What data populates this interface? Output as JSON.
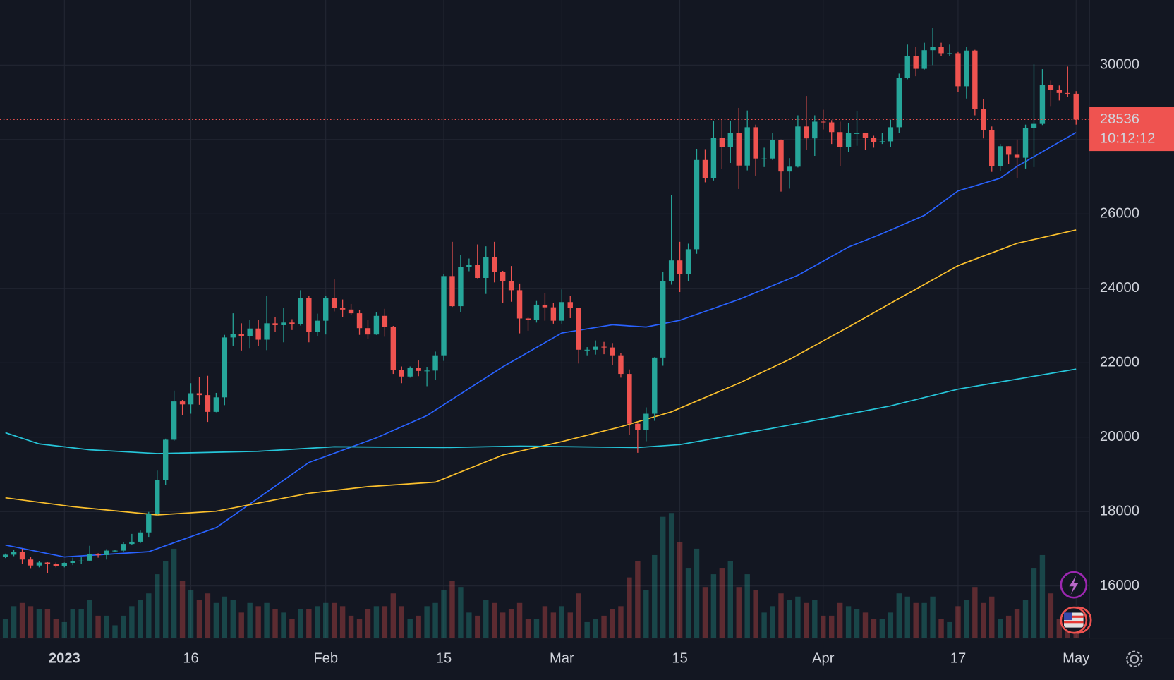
{
  "chart_data": {
    "type": "candlestick",
    "x": [
      "2022-12-25",
      "2022-12-26",
      "2022-12-27",
      "2022-12-28",
      "2022-12-29",
      "2022-12-30",
      "2022-12-31",
      "2023-01-01",
      "2023-01-02",
      "2023-01-03",
      "2023-01-04",
      "2023-01-05",
      "2023-01-06",
      "2023-01-07",
      "2023-01-08",
      "2023-01-09",
      "2023-01-10",
      "2023-01-11",
      "2023-01-12",
      "2023-01-13",
      "2023-01-14",
      "2023-01-15",
      "2023-01-16",
      "2023-01-17",
      "2023-01-18",
      "2023-01-19",
      "2023-01-20",
      "2023-01-21",
      "2023-01-22",
      "2023-01-23",
      "2023-01-24",
      "2023-01-25",
      "2023-01-26",
      "2023-01-27",
      "2023-01-28",
      "2023-01-29",
      "2023-01-30",
      "2023-01-31",
      "2023-02-01",
      "2023-02-02",
      "2023-02-03",
      "2023-02-04",
      "2023-02-05",
      "2023-02-06",
      "2023-02-07",
      "2023-02-08",
      "2023-02-09",
      "2023-02-10",
      "2023-02-11",
      "2023-02-12",
      "2023-02-13",
      "2023-02-14",
      "2023-02-15",
      "2023-02-16",
      "2023-02-17",
      "2023-02-18",
      "2023-02-19",
      "2023-02-20",
      "2023-02-21",
      "2023-02-22",
      "2023-02-23",
      "2023-02-24",
      "2023-02-25",
      "2023-02-26",
      "2023-02-27",
      "2023-02-28",
      "2023-03-01",
      "2023-03-02",
      "2023-03-03",
      "2023-03-04",
      "2023-03-05",
      "2023-03-06",
      "2023-03-07",
      "2023-03-08",
      "2023-03-09",
      "2023-03-10",
      "2023-03-11",
      "2023-03-12",
      "2023-03-13",
      "2023-03-14",
      "2023-03-15",
      "2023-03-16",
      "2023-03-17",
      "2023-03-18",
      "2023-03-19",
      "2023-03-20",
      "2023-03-21",
      "2023-03-22",
      "2023-03-23",
      "2023-03-24",
      "2023-03-25",
      "2023-03-26",
      "2023-03-27",
      "2023-03-28",
      "2023-03-29",
      "2023-03-30",
      "2023-03-31",
      "2023-04-01",
      "2023-04-02",
      "2023-04-03",
      "2023-04-04",
      "2023-04-05",
      "2023-04-06",
      "2023-04-07",
      "2023-04-08",
      "2023-04-09",
      "2023-04-10",
      "2023-04-11",
      "2023-04-12",
      "2023-04-13",
      "2023-04-14",
      "2023-04-15",
      "2023-04-16",
      "2023-04-17",
      "2023-04-18",
      "2023-04-19",
      "2023-04-20",
      "2023-04-21",
      "2023-04-22",
      "2023-04-23",
      "2023-04-24",
      "2023-04-25",
      "2023-04-26",
      "2023-04-27",
      "2023-04-28",
      "2023-04-29",
      "2023-04-30",
      "2023-05-01"
    ],
    "open": [
      16780,
      16840,
      16920,
      16710,
      16550,
      16630,
      16600,
      16540,
      16620,
      16670,
      16680,
      16850,
      16830,
      16950,
      16950,
      17130,
      17190,
      17440,
      17940,
      18850,
      19930,
      20960,
      20880,
      21180,
      21130,
      20680,
      21070,
      22680,
      22780,
      22710,
      22920,
      22620,
      23060,
      23010,
      23080,
      23030,
      23740,
      22830,
      23130,
      23730,
      23480,
      23430,
      23330,
      22930,
      22760,
      23260,
      22960,
      21800,
      21630,
      21860,
      21780,
      21790,
      22200,
      24330,
      23520,
      24570,
      24630,
      24280,
      24840,
      24440,
      24190,
      23950,
      23190,
      23160,
      23560,
      23490,
      23130,
      23630,
      23470,
      22350,
      22350,
      22430,
      22410,
      22200,
      21700,
      20360,
      20190,
      20630,
      22140,
      24200,
      24750,
      24380,
      25050,
      27450,
      26960,
      28040,
      27800,
      28170,
      27300,
      28330,
      27490,
      27490,
      27990,
      27140,
      27270,
      28350,
      28030,
      28480,
      28460,
      28200,
      27800,
      28170,
      28170,
      28040,
      27920,
      27950,
      28330,
      29650,
      30240,
      29900,
      30400,
      30490,
      30320,
      30320,
      29430,
      30390,
      28820,
      28250,
      27280,
      27820,
      27590,
      27510,
      28310,
      28420,
      29470,
      29340,
      29250,
      29230
    ],
    "high": [
      16870,
      16980,
      17000,
      16780,
      16660,
      16640,
      16630,
      16630,
      16760,
      16770,
      17080,
      16880,
      16990,
      16980,
      17170,
      17400,
      17490,
      17990,
      19100,
      19960,
      21250,
      21000,
      21450,
      21620,
      21650,
      21190,
      22750,
      23330,
      23060,
      23150,
      23160,
      23790,
      23230,
      23480,
      23170,
      23950,
      23800,
      23320,
      23800,
      24240,
      23700,
      23580,
      23420,
      23150,
      23350,
      23450,
      22990,
      21900,
      21900,
      22060,
      21890,
      22300,
      24380,
      25250,
      24900,
      24800,
      25180,
      25130,
      25250,
      24470,
      24600,
      24130,
      23220,
      23660,
      23880,
      23600,
      23970,
      23790,
      23480,
      22420,
      22600,
      22560,
      22530,
      22270,
      21820,
      20370,
      20800,
      22150,
      24450,
      26500,
      25250,
      25200,
      27750,
      27740,
      28500,
      28550,
      28500,
      28850,
      28780,
      28400,
      27780,
      28180,
      28000,
      27500,
      28650,
      29170,
      28650,
      28800,
      28520,
      28480,
      28450,
      28760,
      28180,
      28100,
      28170,
      28530,
      29770,
      30550,
      30480,
      30600,
      31000,
      30600,
      30550,
      30350,
      30480,
      30410,
      29080,
      28350,
      27880,
      27820,
      28000,
      28400,
      30020,
      29890,
      29580,
      29450,
      29960,
      29300
    ],
    "low": [
      16750,
      16800,
      16600,
      16480,
      16500,
      16350,
      16500,
      16500,
      16560,
      16600,
      16660,
      16760,
      16710,
      16910,
      16910,
      17100,
      17150,
      17320,
      17900,
      18710,
      19900,
      20600,
      20630,
      20870,
      20410,
      20670,
      20860,
      22460,
      22330,
      22380,
      22460,
      22340,
      22820,
      22550,
      22880,
      23000,
      22550,
      22720,
      22760,
      23380,
      23220,
      23280,
      22750,
      22630,
      22750,
      22700,
      21700,
      21450,
      21600,
      21640,
      21370,
      21540,
      22050,
      23500,
      23370,
      24460,
      24270,
      23850,
      24160,
      23600,
      23640,
      22790,
      22860,
      23080,
      23130,
      23050,
      23050,
      23200,
      21980,
      22200,
      22220,
      22230,
      21930,
      21600,
      20060,
      19580,
      19890,
      20440,
      21920,
      24100,
      23900,
      24200,
      24930,
      26850,
      26900,
      27200,
      27370,
      26670,
      27170,
      27030,
      27260,
      27450,
      26600,
      26680,
      27250,
      27720,
      27560,
      28270,
      27880,
      27280,
      27670,
      27830,
      27730,
      27780,
      27880,
      27800,
      28180,
      29620,
      29700,
      29880,
      30000,
      30250,
      30240,
      29270,
      29100,
      28650,
      28030,
      27130,
      27150,
      27350,
      26970,
      27220,
      27260,
      28390,
      28900,
      29050,
      29140,
      28400
    ],
    "close": [
      16840,
      16920,
      16710,
      16550,
      16630,
      16600,
      16540,
      16620,
      16670,
      16680,
      16850,
      16830,
      16950,
      16950,
      17130,
      17190,
      17440,
      17940,
      18850,
      19930,
      20960,
      20880,
      21180,
      21130,
      20680,
      21070,
      22680,
      22780,
      22710,
      22920,
      22620,
      23060,
      23010,
      23080,
      23030,
      23740,
      22830,
      23130,
      23730,
      23480,
      23430,
      23330,
      22930,
      22760,
      23260,
      22960,
      21800,
      21630,
      21860,
      21780,
      21790,
      22200,
      24330,
      23520,
      24570,
      24630,
      24280,
      24840,
      24440,
      24190,
      23950,
      23190,
      23160,
      23560,
      23490,
      23130,
      23630,
      23470,
      22350,
      22350,
      22430,
      22410,
      22200,
      21700,
      20360,
      20190,
      20630,
      22140,
      24200,
      24750,
      24380,
      25050,
      27450,
      26960,
      28040,
      27800,
      28170,
      27300,
      28330,
      27490,
      27490,
      27990,
      27140,
      27270,
      28350,
      28030,
      28480,
      28460,
      28200,
      27800,
      28170,
      28170,
      28040,
      27920,
      27950,
      28330,
      29650,
      30240,
      29900,
      30400,
      30490,
      30320,
      30320,
      29430,
      30390,
      28820,
      28250,
      27280,
      27820,
      27590,
      27510,
      28310,
      28420,
      29470,
      29340,
      29250,
      29230,
      28536
    ],
    "volume": [
      30,
      50,
      55,
      50,
      45,
      45,
      30,
      25,
      45,
      45,
      60,
      35,
      35,
      20,
      35,
      50,
      60,
      70,
      100,
      120,
      140,
      90,
      75,
      60,
      70,
      55,
      65,
      60,
      40,
      55,
      50,
      55,
      45,
      40,
      30,
      45,
      45,
      50,
      55,
      55,
      50,
      35,
      30,
      45,
      50,
      50,
      70,
      50,
      30,
      35,
      50,
      55,
      75,
      90,
      80,
      40,
      35,
      60,
      55,
      40,
      45,
      55,
      30,
      30,
      50,
      40,
      50,
      40,
      70,
      25,
      30,
      35,
      45,
      50,
      95,
      120,
      75,
      130,
      190,
      196,
      150,
      110,
      140,
      80,
      100,
      110,
      120,
      80,
      100,
      75,
      40,
      50,
      70,
      60,
      65,
      55,
      60,
      35,
      35,
      55,
      50,
      45,
      40,
      30,
      30,
      40,
      70,
      65,
      55,
      55,
      65,
      30,
      25,
      50,
      60,
      80,
      55,
      65,
      30,
      35,
      45,
      60,
      110,
      130,
      70,
      30,
      35,
      40
    ],
    "up_color": "#26a69a",
    "down_color": "#ef5350",
    "xlim": [
      "2022-12-25",
      "2023-05-02"
    ],
    "xticks": [
      {
        "value": "2023-01-01",
        "label": "2023"
      },
      {
        "value": "2023-01-16",
        "label": "16"
      },
      {
        "value": "2023-02-01",
        "label": "Feb"
      },
      {
        "value": "2023-02-15",
        "label": "15"
      },
      {
        "value": "2023-03-01",
        "label": "Mar"
      },
      {
        "value": "2023-03-15",
        "label": "15"
      },
      {
        "value": "2023-04-01",
        "label": "Apr"
      },
      {
        "value": "2023-04-17",
        "label": "17"
      },
      {
        "value": "2023-05-01",
        "label": "May"
      }
    ],
    "ylim": [
      14600,
      31750
    ],
    "yticks": [
      16000,
      18000,
      20000,
      22000,
      24000,
      26000,
      28000,
      30000
    ],
    "y2lim": [
      0,
      1000
    ],
    "grid": true,
    "series": [
      {
        "color": "#2962ff",
        "x": [
          "2022-12-25",
          "2023-01-01",
          "2023-01-11",
          "2023-01-19",
          "2023-01-30",
          "2023-02-07",
          "2023-02-13",
          "2023-02-22",
          "2023-03-01",
          "2023-03-07",
          "2023-03-11",
          "2023-03-15",
          "2023-03-22",
          "2023-03-29",
          "2023-04-04",
          "2023-04-08",
          "2023-04-13",
          "2023-04-17",
          "2023-04-22",
          "2023-04-24",
          "2023-05-01"
        ],
        "values": [
          17100,
          16780,
          16920,
          17570,
          19320,
          19980,
          20580,
          21890,
          22800,
          23020,
          22960,
          23140,
          23700,
          24350,
          25110,
          25470,
          25960,
          26620,
          26960,
          27280,
          28190
        ]
      },
      {
        "color": "#fbc02d",
        "x": [
          "2022-12-25",
          "2023-01-02",
          "2023-01-12",
          "2023-01-19",
          "2023-01-30",
          "2023-02-06",
          "2023-02-14",
          "2023-02-22",
          "2023-03-01",
          "2023-03-08",
          "2023-03-14",
          "2023-03-22",
          "2023-03-28",
          "2023-04-04",
          "2023-04-09",
          "2023-04-17",
          "2023-04-24",
          "2023-05-01"
        ],
        "values": [
          18370,
          18130,
          17910,
          18010,
          18490,
          18670,
          18790,
          19520,
          19880,
          20280,
          20680,
          21450,
          22090,
          22960,
          23600,
          24610,
          25210,
          25570
        ]
      },
      {
        "color": "#26c6da",
        "x": [
          "2022-12-25",
          "2022-12-29",
          "2023-01-04",
          "2023-01-12",
          "2023-01-24",
          "2023-02-02",
          "2023-02-15",
          "2023-02-24",
          "2023-03-10",
          "2023-03-15",
          "2023-03-26",
          "2023-04-04",
          "2023-04-09",
          "2023-04-17",
          "2023-05-01"
        ],
        "values": [
          20120,
          19820,
          19660,
          19560,
          19620,
          19740,
          19720,
          19760,
          19720,
          19800,
          20240,
          20620,
          20840,
          21290,
          21830
        ]
      }
    ],
    "last_price": 28536,
    "countdown": "10:12:12"
  }
}
